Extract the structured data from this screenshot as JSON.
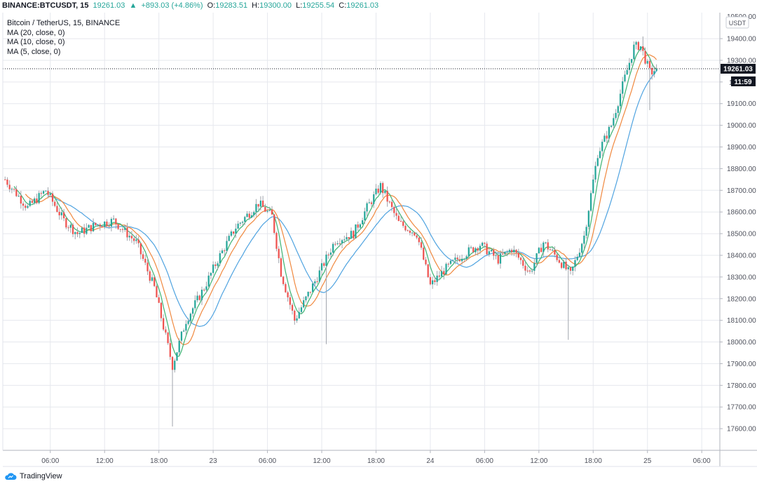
{
  "header": {
    "symbol": "BINANCE:BTCUSDT, 15",
    "last_value": "19261.03",
    "arrow": "▲",
    "change": "+893.03 (+4.86%)",
    "o_label": "O:",
    "o_value": "19283.51",
    "h_label": "H:",
    "h_value": "19300.00",
    "l_label": "L:",
    "l_value": "19255.54",
    "c_label": "C:",
    "c_value": "19261.03"
  },
  "legend": {
    "title": "Bitcoin / TetherUS, 15, BINANCE",
    "items": [
      "MA (20, close, 0)",
      "MA (10, close, 0)",
      "MA (5, close, 0)"
    ]
  },
  "price_axis": {
    "currency": "USDT",
    "last_price": "19261.03",
    "countdown": "11:59",
    "clipped_top_tick": "19500.00"
  },
  "footer": {
    "brand": "TradingView",
    "icon": "tradingview-cloud-icon"
  },
  "colors": {
    "up": "#26a69a",
    "down": "#ef5350",
    "wick": "#a0a4ac",
    "ma20": "#4fa3e0",
    "ma10": "#f0883e",
    "ma5": "#3cb371",
    "grid": "#e6e8ee",
    "axis_text": "#50535e",
    "price_label_bg": "#131722"
  },
  "chart_data": {
    "type": "candlestick",
    "interval_minutes": 15,
    "y_ticks": [
      17600,
      17700,
      17800,
      17900,
      18000,
      18100,
      18200,
      18300,
      18400,
      18500,
      18600,
      18700,
      18800,
      18900,
      19000,
      19100,
      19200,
      19300,
      19400
    ],
    "ylim": [
      17500,
      19520
    ],
    "x_tick_labels": [
      "06:00",
      "12:00",
      "18:00",
      "23",
      "06:00",
      "12:00",
      "18:00",
      "24",
      "06:00",
      "12:00",
      "18:00",
      "25",
      "06:00"
    ],
    "x_tick_hours": [
      6,
      12,
      18,
      24,
      30,
      36,
      42,
      48,
      54,
      60,
      66,
      72,
      78
    ],
    "xlim_hours": [
      0.75,
      80.0
    ],
    "last_price": 19261.03,
    "ma_periods": [
      20,
      10,
      5
    ],
    "anchor_prices": [
      [
        1.0,
        18750
      ],
      [
        3.5,
        18620
      ],
      [
        5.5,
        18700
      ],
      [
        7.5,
        18560
      ],
      [
        9.0,
        18500
      ],
      [
        11.0,
        18540
      ],
      [
        13.0,
        18560
      ],
      [
        15.5,
        18460
      ],
      [
        17.5,
        18250
      ],
      [
        19.5,
        17890
      ],
      [
        21.0,
        18100
      ],
      [
        23.0,
        18250
      ],
      [
        24.5,
        18380
      ],
      [
        26.5,
        18530
      ],
      [
        29.0,
        18640
      ],
      [
        30.5,
        18580
      ],
      [
        31.5,
        18320
      ],
      [
        33.0,
        18100
      ],
      [
        35.5,
        18300
      ],
      [
        37.5,
        18470
      ],
      [
        39.5,
        18500
      ],
      [
        41.0,
        18620
      ],
      [
        42.5,
        18720
      ],
      [
        44.5,
        18550
      ],
      [
        46.5,
        18500
      ],
      [
        48.0,
        18260
      ],
      [
        49.5,
        18330
      ],
      [
        51.5,
        18400
      ],
      [
        53.5,
        18450
      ],
      [
        55.5,
        18380
      ],
      [
        57.0,
        18430
      ],
      [
        59.0,
        18320
      ],
      [
        60.5,
        18460
      ],
      [
        62.0,
        18390
      ],
      [
        63.5,
        18310
      ],
      [
        65.0,
        18490
      ],
      [
        66.5,
        18870
      ],
      [
        68.0,
        19000
      ],
      [
        69.5,
        19220
      ],
      [
        70.5,
        19360
      ],
      [
        71.2,
        19370
      ],
      [
        72.3,
        19240
      ],
      [
        73.0,
        19261
      ]
    ],
    "extreme_wicks": [
      {
        "hour": 19.6,
        "low": 17610
      },
      {
        "hour": 36.5,
        "low": 17990
      },
      {
        "hour": 63.2,
        "low": 18010
      },
      {
        "hour": 71.5,
        "high": 19410
      },
      {
        "hour": 72.3,
        "low": 19070
      }
    ]
  }
}
